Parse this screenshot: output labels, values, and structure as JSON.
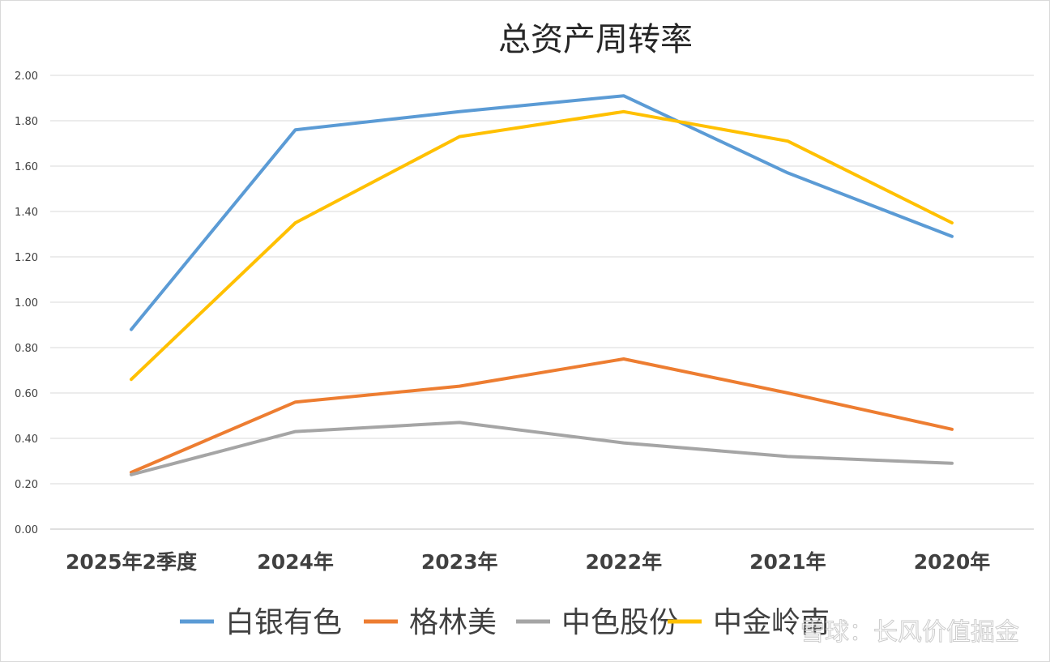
{
  "chart_data": {
    "type": "line",
    "title": "总资产周转率",
    "xlabel": "",
    "ylabel": "",
    "ylim": [
      0,
      2
    ],
    "yticks": [
      0,
      0.2,
      0.4,
      0.6,
      0.8,
      1.0,
      1.2,
      1.4,
      1.6,
      1.8,
      2.0
    ],
    "ytick_labels": [
      "0.00",
      "0.20",
      "0.40",
      "0.60",
      "0.80",
      "1.00",
      "1.20",
      "1.40",
      "1.60",
      "1.80",
      "2.00"
    ],
    "categories": [
      "2025年2季度",
      "2024年",
      "2023年",
      "2022年",
      "2021年",
      "2020年"
    ],
    "grid": true,
    "legend_position": "bottom",
    "series": [
      {
        "name": "白银有色",
        "color": "#5b9bd5",
        "values": [
          0.88,
          1.76,
          1.84,
          1.91,
          1.57,
          1.29
        ]
      },
      {
        "name": "格林美",
        "color": "#ed7d31",
        "values": [
          0.25,
          0.56,
          0.63,
          0.75,
          0.6,
          0.44
        ]
      },
      {
        "name": "中色股份",
        "color": "#a5a5a5",
        "values": [
          0.24,
          0.43,
          0.47,
          0.38,
          0.32,
          0.29
        ]
      },
      {
        "name": "中金岭南",
        "color": "#ffc000",
        "values": [
          0.66,
          1.35,
          1.73,
          1.84,
          1.71,
          1.35
        ]
      }
    ],
    "watermark": "雪球：长风价值掘金"
  }
}
